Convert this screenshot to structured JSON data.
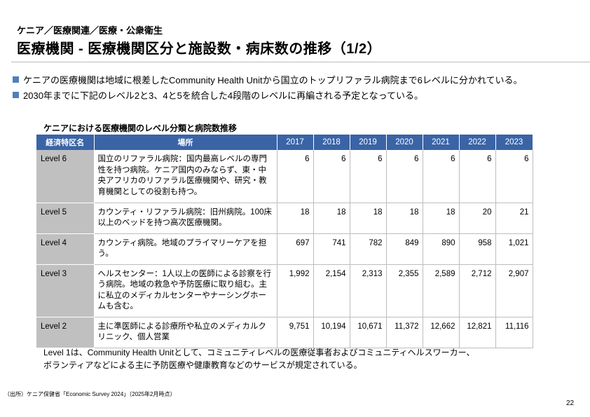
{
  "breadcrumb": "ケニア／医療関連／医療・公衆衛生",
  "title": "医療機関 - 医療機関区分と施設数・病床数の推移（1/2）",
  "bullets": [
    "ケニアの医療機関は地域に根差したCommunity Health Unitから国立のトップリファラル病院まで6レベルに分かれている。",
    "2030年までに下記のレベル2と3、4と5を統合した4段階のレベルに再編される予定となっている。"
  ],
  "table": {
    "caption": "ケニアにおける医療機関のレベル分類と病院数推移",
    "headers": [
      "経済特区名",
      "場所",
      "2017",
      "2018",
      "2019",
      "2020",
      "2021",
      "2022",
      "2023"
    ],
    "rows": [
      {
        "level": "Level 6",
        "desc": "国立のリファラル病院：国内最高レベルの専門性を持つ病院。ケニア国内のみならず、東・中央アフリカのリファラル医療機関や、研究・教育機関としての役割も持つ。",
        "values": [
          "6",
          "6",
          "6",
          "6",
          "6",
          "6",
          "6"
        ]
      },
      {
        "level": "Level 5",
        "desc": "カウンティ・リファラル病院：旧州病院。100床以上のベッドを持つ高次医療機関。",
        "values": [
          "18",
          "18",
          "18",
          "18",
          "18",
          "20",
          "21"
        ]
      },
      {
        "level": "Level 4",
        "desc": "カウンティ病院。地域のプライマリーケアを担う。",
        "values": [
          "697",
          "741",
          "782",
          "849",
          "890",
          "958",
          "1,021"
        ]
      },
      {
        "level": "Level 3",
        "desc": "ヘルスセンター：1人以上の医師による診察を行う病院。地域の救急や予防医療に取り組む。主に私立のメディカルセンターやナーシングホームも含む。",
        "values": [
          "1,992",
          "2,154",
          "2,313",
          "2,355",
          "2,589",
          "2,712",
          "2,907"
        ]
      },
      {
        "level": "Level 2",
        "desc": "主に準医師による診療所や私立のメディカルクリニック、個人営業",
        "values": [
          "9,751",
          "10,194",
          "10,671",
          "11,372",
          "12,662",
          "12,821",
          "11,116"
        ]
      }
    ]
  },
  "note": [
    "Level 1は、Community Health Unitとして、コミュニティレベルの医療従事者およびコミュニティヘルスワーカー、",
    "ボランティアなどによる主に予防医療や健康教育などのサービスが規定されている。"
  ],
  "source": "（出所）ケニア保健省「Economic Survey 2024」（2025年2月時点）",
  "page_number": "22",
  "colors": {
    "header": "#3a64a6",
    "bullet": "#4f7fc0",
    "level_cell": "#c0c0c0"
  }
}
